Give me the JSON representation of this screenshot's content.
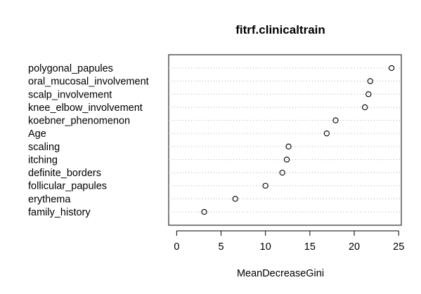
{
  "chart_data": {
    "type": "scatter",
    "title": "fitrf.clinicaltrain",
    "xlabel": "MeanDecreaseGini",
    "ylabel": "",
    "xlim": [
      -0.9,
      25.3
    ],
    "xticks": [
      0,
      5,
      10,
      15,
      20,
      25
    ],
    "grid": "dotted horizontal lines per category",
    "categories": [
      "polygonal_papules",
      "oral_mucosal_involvement",
      "scalp_involvement",
      "knee_elbow_involvement",
      "koebner_phenomenon",
      "Age",
      "scaling",
      "itching",
      "definite_borders",
      "follicular_papules",
      "erythema",
      "family_history"
    ],
    "values": [
      24.2,
      21.8,
      21.6,
      21.2,
      17.9,
      16.9,
      12.6,
      12.4,
      11.9,
      10.0,
      6.6,
      3.1
    ]
  }
}
